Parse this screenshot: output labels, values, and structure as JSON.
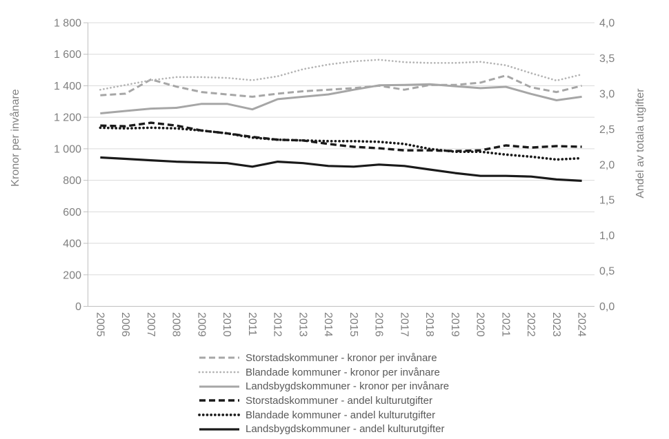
{
  "chart_data": {
    "type": "line",
    "title": "",
    "grid": "horizontal",
    "legend_position": "bottom",
    "x_categories": [
      "2005",
      "2006",
      "2007",
      "2008",
      "2009",
      "2010",
      "2011",
      "2012",
      "2013",
      "2014",
      "2015",
      "2016",
      "2017",
      "2018",
      "2019",
      "2020",
      "2021",
      "2022",
      "2023",
      "2024"
    ],
    "axes": {
      "left": {
        "label": "Kronor per invånare",
        "min": 0,
        "max": 1800,
        "tick_step": 200,
        "tick_labels": [
          "1 800",
          "1 600",
          "1 400",
          "1 200",
          "1 000",
          "800",
          "600",
          "400",
          "200",
          "0"
        ]
      },
      "right": {
        "label": "Andel av totala utgifter",
        "min": 0,
        "max": 4.0,
        "tick_step": 0.5,
        "tick_labels": [
          "4,0",
          "3,5",
          "3,0",
          "2,5",
          "2,0",
          "1,5",
          "1,0",
          "0,5",
          "0,0"
        ]
      }
    },
    "series": [
      {
        "name": "Storstadskommuner - kronor per invånare",
        "axis": "left",
        "line_style": "dashed",
        "color": "#a6a6a6",
        "values": [
          1340,
          1350,
          1440,
          1395,
          1360,
          1345,
          1330,
          1350,
          1365,
          1375,
          1385,
          1400,
          1375,
          1405,
          1405,
          1420,
          1465,
          1390,
          1360,
          1400
        ]
      },
      {
        "name": "Blandade kommuner - kronor per invånare",
        "axis": "left",
        "line_style": "dotted",
        "color": "#b3b3b3",
        "values": [
          1375,
          1405,
          1435,
          1455,
          1455,
          1450,
          1435,
          1460,
          1505,
          1535,
          1555,
          1565,
          1550,
          1545,
          1545,
          1552,
          1530,
          1480,
          1433,
          1472
        ]
      },
      {
        "name": "Landsbygdskommuner - kronor per invånare",
        "axis": "left",
        "line_style": "solid",
        "color": "#a6a6a6",
        "values": [
          1225,
          1240,
          1255,
          1260,
          1285,
          1285,
          1250,
          1315,
          1330,
          1345,
          1375,
          1403,
          1405,
          1410,
          1397,
          1385,
          1393,
          1348,
          1308,
          1330
        ]
      },
      {
        "name": "Storstadskommuner - andel kulturutgifter",
        "axis": "right",
        "line_style": "dashed",
        "color": "#1a1a1a",
        "values": [
          2.55,
          2.54,
          2.59,
          2.55,
          2.48,
          2.44,
          2.39,
          2.35,
          2.34,
          2.29,
          2.25,
          2.23,
          2.2,
          2.2,
          2.19,
          2.2,
          2.27,
          2.24,
          2.26,
          2.25
        ]
      },
      {
        "name": "Blandade kommuner - andel kulturutgifter",
        "axis": "right",
        "line_style": "dotted",
        "color": "#1a1a1a",
        "values": [
          2.52,
          2.51,
          2.52,
          2.51,
          2.48,
          2.44,
          2.38,
          2.35,
          2.34,
          2.33,
          2.33,
          2.32,
          2.29,
          2.22,
          2.18,
          2.18,
          2.14,
          2.11,
          2.07,
          2.09
        ]
      },
      {
        "name": "Landsbygdskommuner - andel kulturutgifter",
        "axis": "right",
        "line_style": "solid",
        "color": "#1a1a1a",
        "values": [
          2.1,
          2.08,
          2.06,
          2.04,
          2.03,
          2.02,
          1.97,
          2.04,
          2.02,
          1.98,
          1.97,
          2.0,
          1.98,
          1.93,
          1.88,
          1.84,
          1.84,
          1.83,
          1.79,
          1.77
        ]
      }
    ]
  },
  "colors": {
    "background": "#ffffff",
    "gridline": "#dadada",
    "axis_line": "#c0c0c0",
    "tick_label": "#7f7f7f",
    "axis_title": "#7f7f7f",
    "legend_text": "#595959"
  }
}
